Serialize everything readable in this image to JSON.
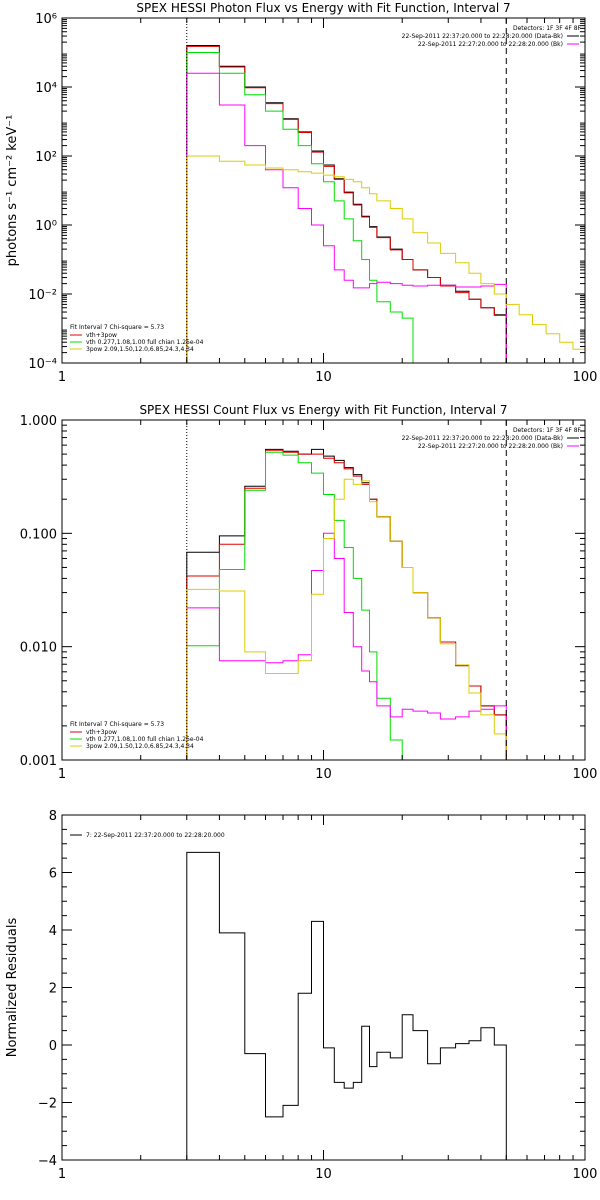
{
  "chart_data": [
    {
      "type": "line",
      "title": "SPEX HESSI Photon Flux vs Energy with Fit Function, Interval 7",
      "xlabel": "",
      "ylabel": "photons s⁻¹ cm⁻² keV⁻¹",
      "xscale": "log",
      "yscale": "log",
      "xlim": [
        1,
        100
      ],
      "ylim": [
        0.0001,
        1000000
      ],
      "xticks": [
        "1",
        "10",
        "100"
      ],
      "yticks": [
        "10⁻⁴",
        "10⁻²",
        "10⁰",
        "10²",
        "10⁴",
        "10⁶"
      ],
      "ytick_values": [
        0.0001,
        0.01,
        1,
        100,
        10000,
        1000000
      ],
      "legend_header": "Detectors: 1F 3F 4F 8F",
      "legend_lines": [
        {
          "text": "22-Sep-2011 22:37:20.000 to 22:28:20.000 (Data-Bk)",
          "color": "#000000"
        },
        {
          "text": "22-Sep-2011 22:27:20.000 to 22:28:20.000 (Bk)",
          "color": "#ff00ff"
        }
      ],
      "fit_header": "Fit Interval 7   Chi-square = 5.73",
      "fit_lines": [
        {
          "text": "vth+3pow",
          "color": "#dd0000"
        },
        {
          "text": "vth 0.277,1.08,1.00  full chian 1.25e-04",
          "color": "#00dd00"
        },
        {
          "text": "3pow 2.09,1.50,12.0,6.85,24.3,4.34",
          "color": "#ddcc00"
        }
      ],
      "vlines": [
        {
          "x": 3,
          "style": "dotted"
        },
        {
          "x": 50,
          "style": "dashed"
        }
      ],
      "edges": [
        3,
        4,
        5,
        6,
        7,
        8,
        9,
        10,
        11,
        12,
        13,
        14,
        15,
        16,
        18,
        20,
        22,
        25,
        28,
        32,
        36,
        40,
        45,
        50,
        56,
        63,
        71,
        80,
        90,
        100
      ],
      "series": [
        {
          "color": "#000000",
          "values": [
            160000,
            40000,
            10000,
            3500,
            1200,
            500,
            140,
            55,
            22,
            9,
            4,
            1.8,
            0.9,
            0.45,
            0.2,
            0.1,
            0.05,
            0.03,
            0.018,
            0.012,
            0.007,
            0.004,
            0.0025,
            null,
            null,
            null,
            null,
            null,
            null
          ]
        },
        {
          "color": "#dd0000",
          "values": [
            150000,
            38000,
            9500,
            3300,
            1150,
            480,
            130,
            50,
            21,
            8.5,
            3.8,
            1.7,
            0.85,
            0.43,
            0.19,
            0.1,
            0.05,
            0.03,
            0.017,
            0.011,
            0.007,
            0.004,
            0.0024,
            null,
            null,
            null,
            null,
            null,
            null
          ]
        },
        {
          "color": "#00dd00",
          "values": [
            100000,
            25000,
            6000,
            2000,
            600,
            200,
            60,
            18,
            5,
            1.5,
            0.35,
            0.1,
            0.025,
            0.006,
            0.003,
            0.002,
            4e-05,
            null,
            null,
            null,
            null,
            null,
            null,
            null,
            null,
            null,
            null,
            null,
            null
          ]
        },
        {
          "color": "#ff00ff",
          "values": [
            25000,
            3000,
            200,
            40,
            12,
            3,
            1,
            0.25,
            0.05,
            0.025,
            0.015,
            0.015,
            0.02,
            0.022,
            0.02,
            0.018,
            0.017,
            0.018,
            0.018,
            0.016,
            0.016,
            0.017,
            0.019,
            null,
            null,
            null,
            null,
            null,
            null
          ]
        },
        {
          "color": "#ddcc00",
          "values": [
            100,
            70,
            55,
            45,
            40,
            35,
            32,
            28,
            25,
            21,
            18,
            12,
            8,
            5,
            3,
            1.5,
            0.6,
            0.3,
            0.15,
            0.08,
            0.04,
            0.02,
            0.01,
            0.005,
            0.0025,
            0.0013,
            0.0007,
            0.0004,
            0.00025
          ]
        }
      ]
    },
    {
      "type": "line",
      "title": "SPEX HESSI Count Flux vs Energy with Fit Function, Interval 7",
      "xlabel": "",
      "ylabel": "",
      "xscale": "log",
      "yscale": "log",
      "xlim": [
        1,
        100
      ],
      "ylim": [
        0.001,
        1
      ],
      "xticks": [
        "1",
        "10",
        "100"
      ],
      "yticks": [
        "0.001",
        "0.010",
        "0.100",
        "1.000"
      ],
      "ytick_values": [
        0.001,
        0.01,
        0.1,
        1
      ],
      "legend_header": "Detectors: 1F 3F 4F 8F",
      "legend_lines": [
        {
          "text": "22-Sep-2011 22:37:20.000 to 22:28:20.000 (Data-Bk)",
          "color": "#000000"
        },
        {
          "text": "22-Sep-2011 22:27:20.000 to 22:28:20.000 (Bk)",
          "color": "#ff00ff"
        }
      ],
      "fit_header": "Fit Interval 7   Chi-square = 5.73",
      "fit_lines": [
        {
          "text": "vth+3pow",
          "color": "#dd0000"
        },
        {
          "text": "vth 0.277,1.08,1.00  full chian 1.25e-04",
          "color": "#00dd00"
        },
        {
          "text": "3pow 2.09,1.50,12.0,6.85,24.3,4.34",
          "color": "#ddcc00"
        }
      ],
      "vlines": [
        {
          "x": 3,
          "style": "dotted"
        },
        {
          "x": 50,
          "style": "dashed"
        }
      ],
      "edges": [
        3,
        4,
        5,
        6,
        7,
        8,
        9,
        10,
        11,
        12,
        13,
        14,
        15,
        16,
        18,
        20,
        22,
        25,
        28,
        32,
        36,
        40,
        45,
        50
      ],
      "series": [
        {
          "color": "#000000",
          "values": [
            0.068,
            0.095,
            0.26,
            0.55,
            0.53,
            0.5,
            0.55,
            0.48,
            0.44,
            0.38,
            0.33,
            0.28,
            0.2,
            0.14,
            0.085,
            0.05,
            0.03,
            0.018,
            0.011,
            0.0068,
            0.0045,
            0.003,
            0.0025
          ]
        },
        {
          "color": "#dd0000",
          "values": [
            0.042,
            0.08,
            0.25,
            0.54,
            0.52,
            0.5,
            0.5,
            0.46,
            0.42,
            0.37,
            0.32,
            0.27,
            0.2,
            0.14,
            0.085,
            0.05,
            0.03,
            0.018,
            0.011,
            0.0068,
            0.0045,
            0.003,
            0.0025
          ]
        },
        {
          "color": "#00dd00",
          "values": [
            0.0102,
            0.048,
            0.24,
            0.52,
            0.49,
            0.42,
            0.34,
            0.22,
            0.13,
            0.075,
            0.04,
            0.021,
            0.009,
            0.0035,
            0.0015,
            0.0006,
            null,
            null,
            null,
            null,
            null,
            null,
            null
          ]
        },
        {
          "color": "#ff00ff",
          "values": [
            0.022,
            0.0075,
            0.0075,
            0.0072,
            0.0075,
            0.0085,
            0.047,
            0.1,
            0.06,
            0.02,
            0.01,
            0.0061,
            0.0049,
            0.003,
            0.0024,
            0.0028,
            0.0027,
            0.0026,
            0.0023,
            0.0024,
            0.0027,
            0.0028,
            0.003
          ]
        },
        {
          "color": "#ddcc00",
          "values": [
            0.032,
            0.031,
            0.009,
            0.0058,
            0.0058,
            0.0075,
            0.029,
            0.09,
            0.2,
            0.3,
            0.27,
            0.29,
            0.19,
            0.14,
            0.085,
            0.05,
            0.03,
            0.018,
            0.0106,
            0.0069,
            0.0039,
            0.0025,
            0.0017
          ]
        }
      ]
    },
    {
      "type": "line",
      "title": "",
      "xlabel": "",
      "ylabel": "Normalized Residuals",
      "xscale": "log",
      "yscale": "linear",
      "xlim": [
        1,
        100
      ],
      "ylim": [
        -4,
        8
      ],
      "xticks": [
        "1",
        "10",
        "100"
      ],
      "yticks": [
        "−4",
        "−2",
        "0",
        "2",
        "4",
        "6",
        "8"
      ],
      "ytick_values": [
        -4,
        -2,
        0,
        2,
        4,
        6,
        8
      ],
      "legend_lines": [
        {
          "text": "7: 22-Sep-2011 22:37:20.000 to 22:28:20.000",
          "color": "#000000"
        }
      ],
      "edges": [
        3,
        4,
        5,
        6,
        7,
        8,
        9,
        10,
        11,
        12,
        13,
        14,
        15,
        16,
        18,
        20,
        22,
        25,
        28,
        32,
        36,
        40,
        45,
        50
      ],
      "series": [
        {
          "color": "#000000",
          "values": [
            6.7,
            3.9,
            -0.3,
            -2.5,
            -2.1,
            1.8,
            4.3,
            -0.1,
            -1.3,
            -1.5,
            -1.3,
            0.65,
            -0.75,
            -0.25,
            -0.45,
            1.05,
            0.5,
            -0.65,
            -0.1,
            0.05,
            0.15,
            0.6,
            0.0
          ],
          "baseline": -4
        }
      ]
    }
  ]
}
